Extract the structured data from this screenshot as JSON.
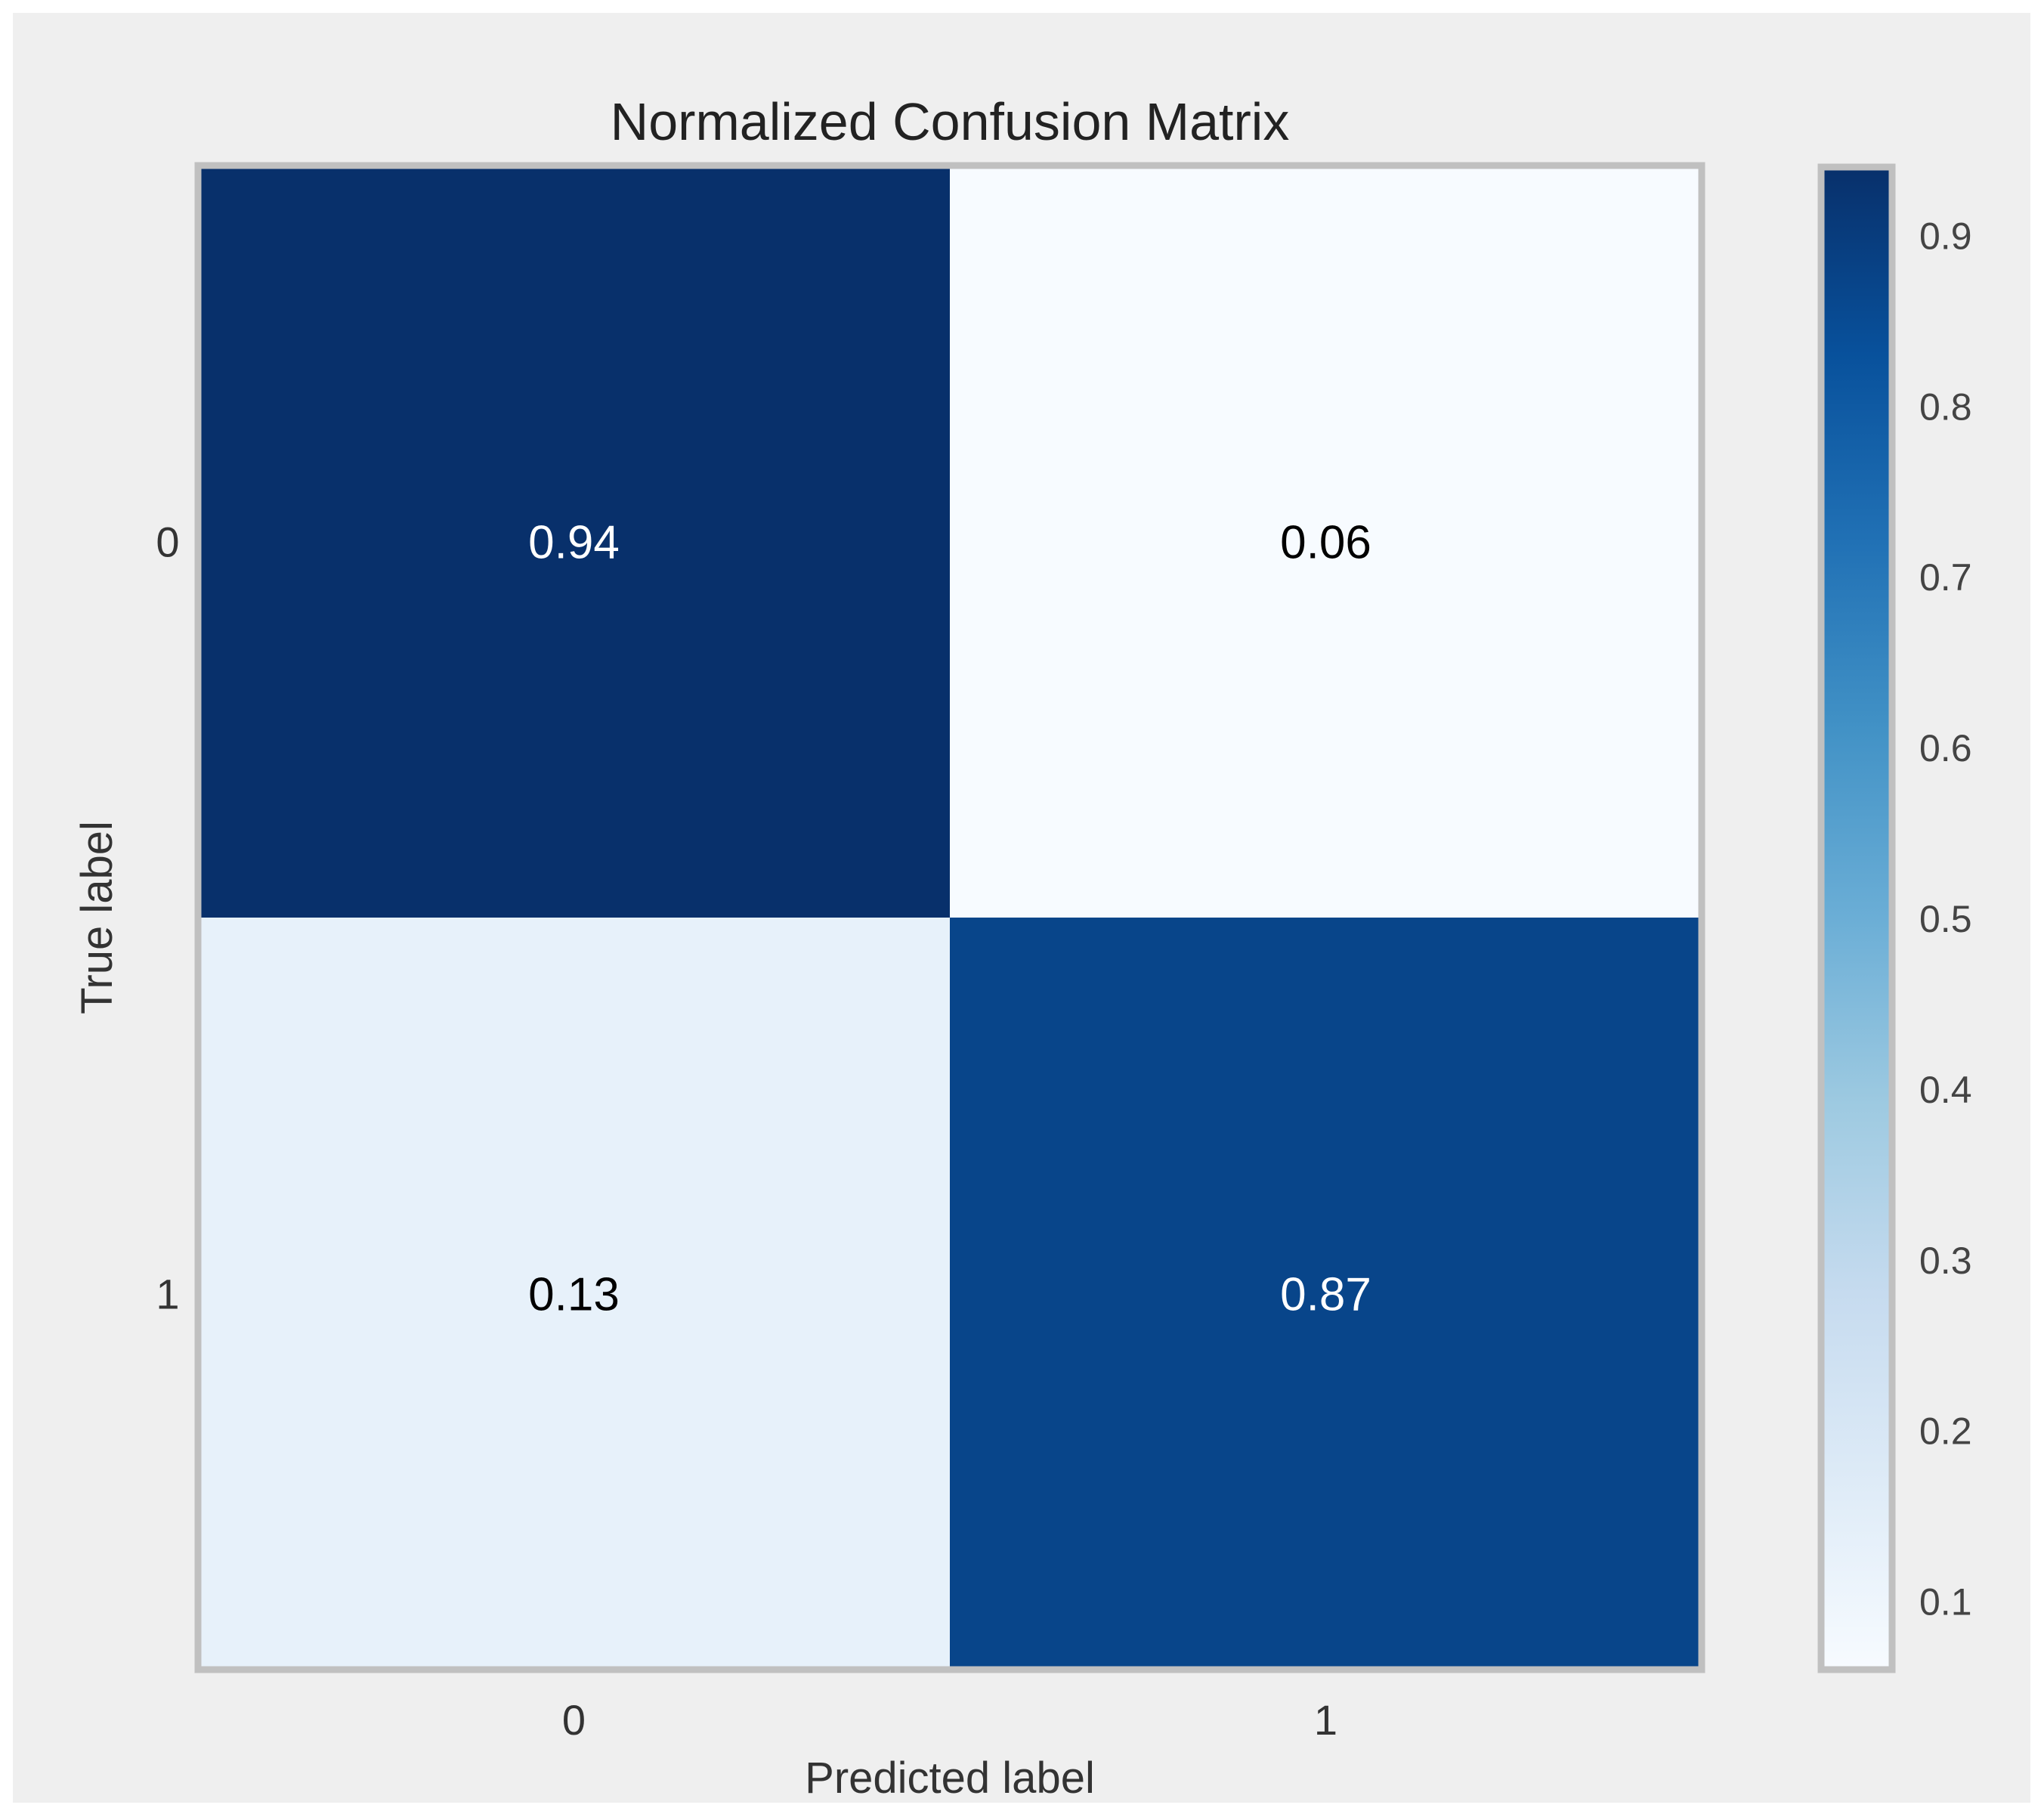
{
  "chart_data": {
    "type": "heatmap",
    "title": "Normalized Confusion Matrix",
    "xlabel": "Predicted label",
    "ylabel": "True label",
    "x_categories": [
      "0",
      "1"
    ],
    "y_categories": [
      "0",
      "1"
    ],
    "values": [
      [
        0.94,
        0.06
      ],
      [
        0.13,
        0.87
      ]
    ],
    "value_labels": [
      [
        "0.94",
        "0.06"
      ],
      [
        "0.13",
        "0.87"
      ]
    ],
    "colormap": "Blues",
    "colorbar": {
      "range": [
        0.06,
        0.94
      ],
      "ticks": [
        0.1,
        0.2,
        0.3,
        0.4,
        0.5,
        0.6,
        0.7,
        0.8,
        0.9
      ],
      "tick_labels": [
        "0.1",
        "0.2",
        "0.3",
        "0.4",
        "0.5",
        "0.6",
        "0.7",
        "0.8",
        "0.9"
      ]
    },
    "grid": false,
    "colors": {
      "background": "#efefef",
      "frame": "#c0c0c0",
      "dark_text": "#ffffff",
      "light_text": "#000000"
    }
  }
}
